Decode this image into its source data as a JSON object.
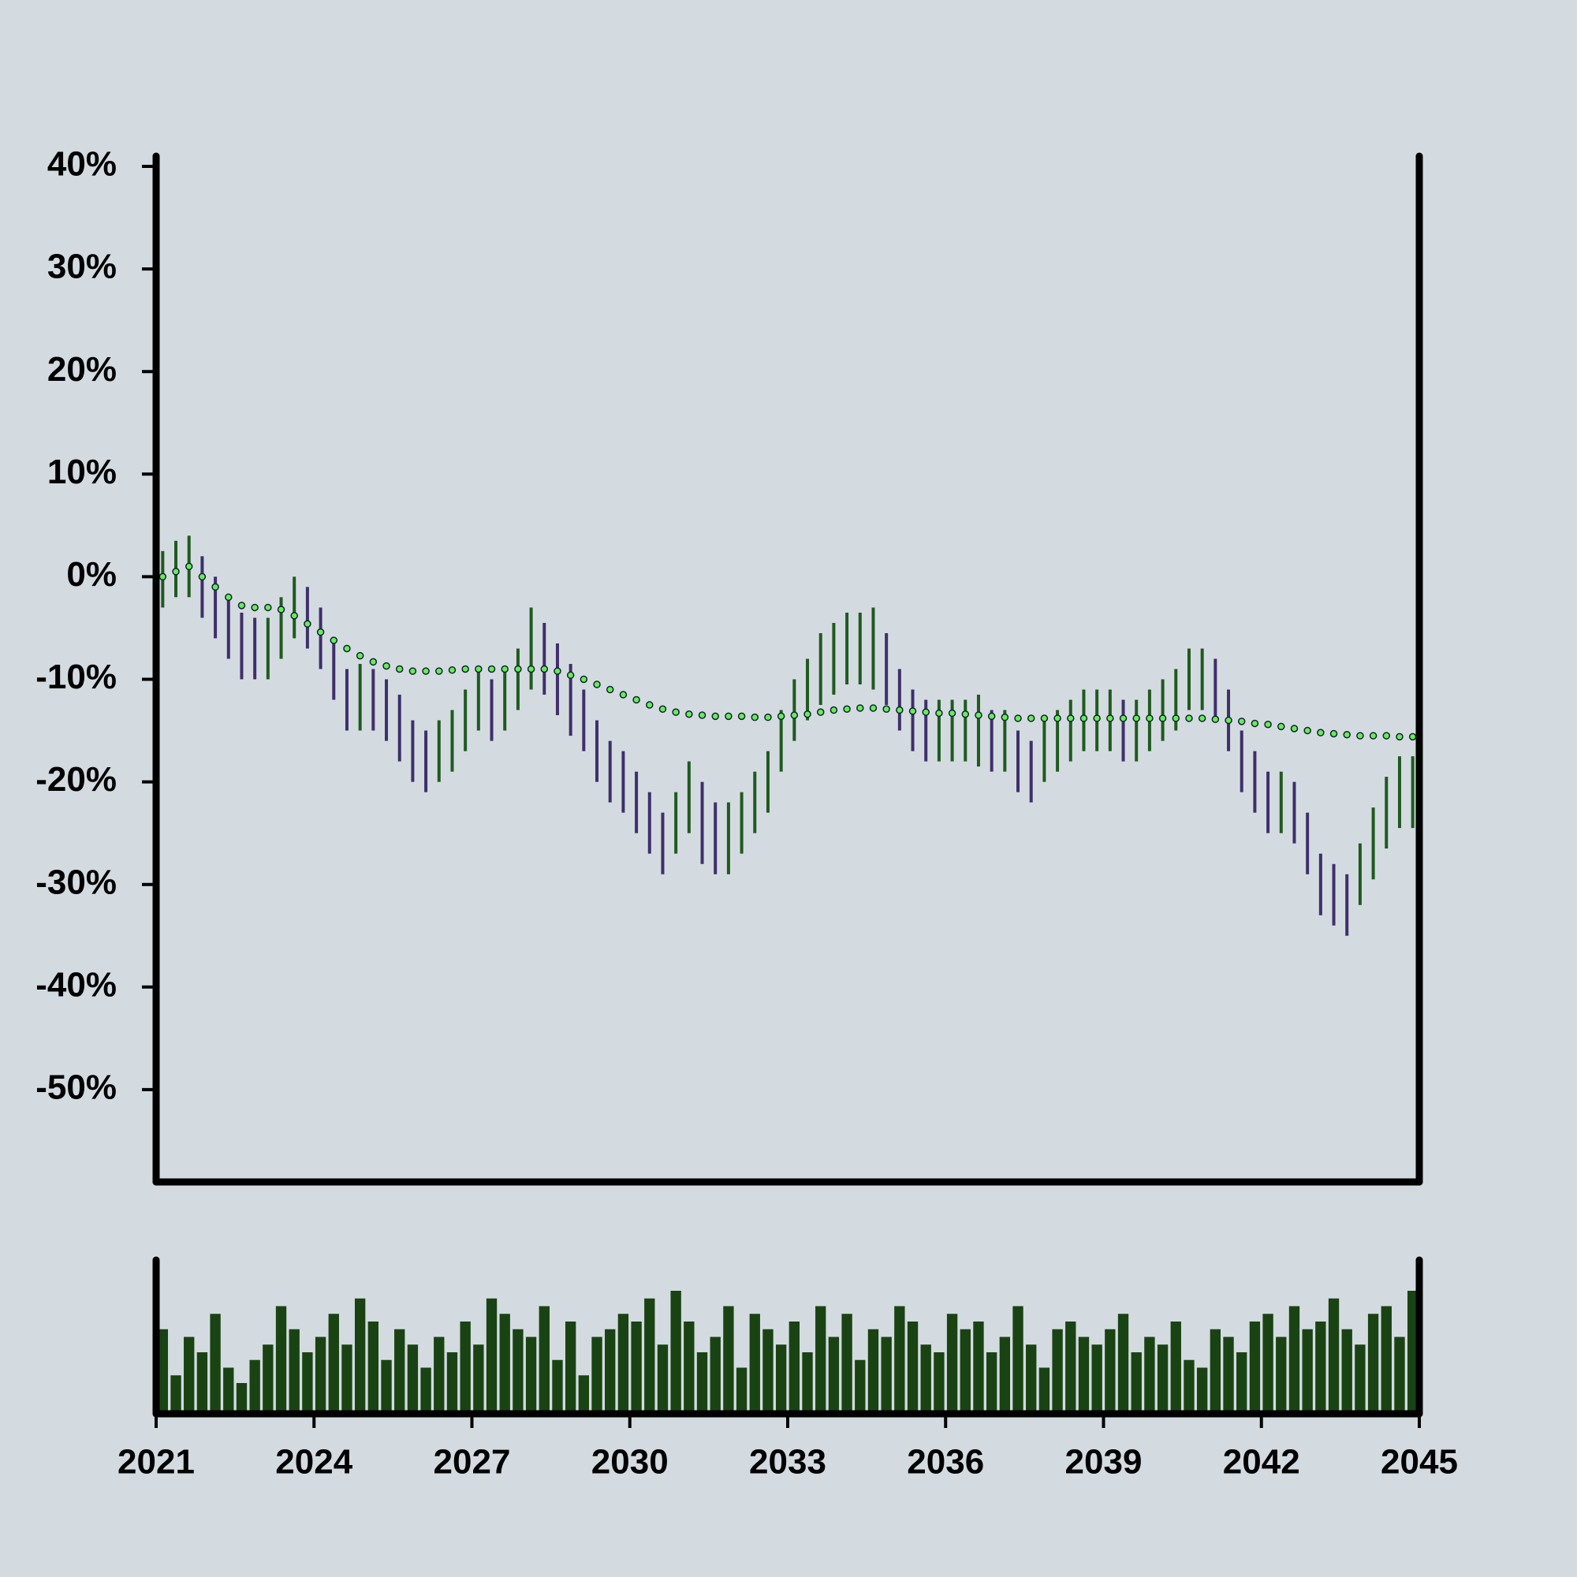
{
  "chart_data": {
    "type": "range",
    "x": [
      2021,
      2021.25,
      2021.5,
      2021.75,
      2022,
      2022.25,
      2022.5,
      2022.75,
      2023,
      2023.25,
      2023.5,
      2023.75,
      2024,
      2024.25,
      2024.5,
      2024.75,
      2025,
      2025.25,
      2025.5,
      2025.75,
      2026,
      2026.25,
      2026.5,
      2026.75,
      2027,
      2027.25,
      2027.5,
      2027.75,
      2028,
      2028.25,
      2028.5,
      2028.75,
      2029,
      2029.25,
      2029.5,
      2029.75,
      2030,
      2030.25,
      2030.5,
      2030.75,
      2031,
      2031.25,
      2031.5,
      2031.75,
      2032,
      2032.25,
      2032.5,
      2032.75,
      2033,
      2033.25,
      2033.5,
      2033.75,
      2034,
      2034.25,
      2034.5,
      2034.75,
      2035,
      2035.25,
      2035.5,
      2035.75,
      2036,
      2036.25,
      2036.5,
      2036.75,
      2037,
      2037.25,
      2037.5,
      2037.75,
      2038,
      2038.25,
      2038.5,
      2038.75,
      2039,
      2039.25,
      2039.5,
      2039.75,
      2040,
      2040.25,
      2040.5,
      2040.75,
      2041,
      2041.25,
      2041.5,
      2041.75,
      2042,
      2042.25,
      2042.5,
      2042.75,
      2043,
      2043.25,
      2043.5,
      2043.75,
      2044,
      2044.25,
      2044.5,
      2044.75
    ],
    "high": [
      2.5,
      3.5,
      4,
      2,
      0,
      -2,
      -3.5,
      -4,
      -4,
      -2,
      0,
      -1,
      -3,
      -6,
      -9,
      -8.5,
      -9,
      -10,
      -11.5,
      -14,
      -15,
      -14,
      -13,
      -11,
      -9,
      -10,
      -9,
      -7,
      -3,
      -4.5,
      -6.5,
      -8.5,
      -11,
      -14,
      -16,
      -17,
      -19,
      -21,
      -23,
      -21,
      -18,
      -20,
      -22,
      -22,
      -21,
      -19,
      -17,
      -13,
      -10,
      -8,
      -5.5,
      -4.5,
      -3.5,
      -3.5,
      -3,
      -5.5,
      -9,
      -11,
      -12,
      -12,
      -12,
      -12,
      -11.5,
      -13,
      -13,
      -15,
      -16,
      -14,
      -13,
      -12,
      -11,
      -11,
      -11,
      -12,
      -12,
      -11,
      -10,
      -9,
      -7,
      -7,
      -8,
      -11,
      -15,
      -17,
      -19,
      -19,
      -20,
      -23,
      -27,
      -28,
      -29,
      -26,
      -22.5,
      -19.5,
      -17.5,
      -17.5
    ],
    "low": [
      -3,
      -2,
      -2,
      -4,
      -6,
      -8,
      -10,
      -10,
      -10,
      -8,
      -6,
      -7,
      -9,
      -12,
      -15,
      -15,
      -15,
      -16,
      -18,
      -20,
      -21,
      -20,
      -19,
      -17,
      -15,
      -16,
      -15,
      -13,
      -11,
      -11.5,
      -13.5,
      -15.5,
      -17,
      -20,
      -22,
      -23,
      -25,
      -27,
      -29,
      -27,
      -25,
      -28,
      -29,
      -29,
      -27,
      -25,
      -23,
      -19,
      -16,
      -14,
      -12.5,
      -11.5,
      -10.5,
      -10.5,
      -11,
      -12.5,
      -15,
      -17,
      -18,
      -18,
      -18,
      -18,
      -18.5,
      -19,
      -19,
      -21,
      -22,
      -20,
      -19,
      -18,
      -17,
      -17,
      -17,
      -18,
      -18,
      -17,
      -16,
      -15,
      -13,
      -13,
      -14,
      -17,
      -21,
      -23,
      -25,
      -25,
      -26,
      -29,
      -33,
      -34,
      -35,
      -32,
      -29.5,
      -26.5,
      -24.5,
      -24.5
    ],
    "moving_average": [
      0,
      0.5,
      1,
      0,
      -1,
      -2,
      -2.8,
      -3,
      -3,
      -3.2,
      -3.8,
      -4.6,
      -5.4,
      -6.2,
      -7,
      -7.7,
      -8.3,
      -8.7,
      -9,
      -9.2,
      -9.2,
      -9.2,
      -9.1,
      -9,
      -9,
      -9,
      -9,
      -9,
      -9,
      -9,
      -9.2,
      -9.6,
      -10,
      -10.5,
      -11,
      -11.5,
      -12,
      -12.5,
      -12.9,
      -13.2,
      -13.4,
      -13.5,
      -13.6,
      -13.6,
      -13.6,
      -13.7,
      -13.7,
      -13.6,
      -13.5,
      -13.4,
      -13.2,
      -13,
      -12.9,
      -12.8,
      -12.8,
      -12.9,
      -13,
      -13.1,
      -13.2,
      -13.3,
      -13.3,
      -13.4,
      -13.5,
      -13.6,
      -13.7,
      -13.8,
      -13.8,
      -13.8,
      -13.8,
      -13.8,
      -13.8,
      -13.8,
      -13.8,
      -13.8,
      -13.8,
      -13.8,
      -13.8,
      -13.8,
      -13.8,
      -13.8,
      -13.9,
      -14,
      -14.1,
      -14.3,
      -14.4,
      -14.6,
      -14.8,
      -15,
      -15.2,
      -15.3,
      -15.4,
      -15.5,
      -15.5,
      -15.5,
      -15.6,
      -15.6
    ],
    "volume": [
      55,
      25,
      50,
      40,
      65,
      30,
      20,
      35,
      45,
      70,
      55,
      40,
      50,
      65,
      45,
      75,
      60,
      35,
      55,
      45,
      30,
      50,
      40,
      60,
      45,
      75,
      65,
      55,
      50,
      70,
      35,
      60,
      25,
      50,
      55,
      65,
      60,
      75,
      45,
      80,
      60,
      40,
      50,
      70,
      30,
      65,
      55,
      45,
      60,
      40,
      70,
      50,
      65,
      35,
      55,
      50,
      70,
      60,
      45,
      40,
      65,
      55,
      60,
      40,
      50,
      70,
      45,
      30,
      55,
      60,
      50,
      45,
      55,
      65,
      40,
      50,
      45,
      60,
      35,
      30,
      55,
      50,
      40,
      60,
      65,
      50,
      70,
      55,
      60,
      75,
      55,
      45,
      65,
      70,
      50,
      80
    ],
    "volume_lim": [
      0,
      100
    ],
    "up_color": "#1f5a1f",
    "down_color": "#3f2f6b",
    "ma_color": "#66ee55",
    "volume_color": "#1a4314",
    "xlim": [
      2021,
      2045
    ],
    "xticks": [
      2021,
      2024,
      2027,
      2030,
      2033,
      2036,
      2039,
      2042,
      2045
    ],
    "ylim": [
      -59,
      41
    ],
    "yticks": [
      {
        "value": -50,
        "label": "-50%"
      },
      {
        "value": -40,
        "label": "-40%"
      },
      {
        "value": -30,
        "label": "-30%"
      },
      {
        "value": -20,
        "label": "-20%"
      },
      {
        "value": -10,
        "label": "-10%"
      },
      {
        "value": 0,
        "label": "0%"
      },
      {
        "value": 10,
        "label": "10%"
      },
      {
        "value": 20,
        "label": "20%"
      },
      {
        "value": 30,
        "label": "30%"
      },
      {
        "value": 40,
        "label": "40%"
      }
    ]
  }
}
